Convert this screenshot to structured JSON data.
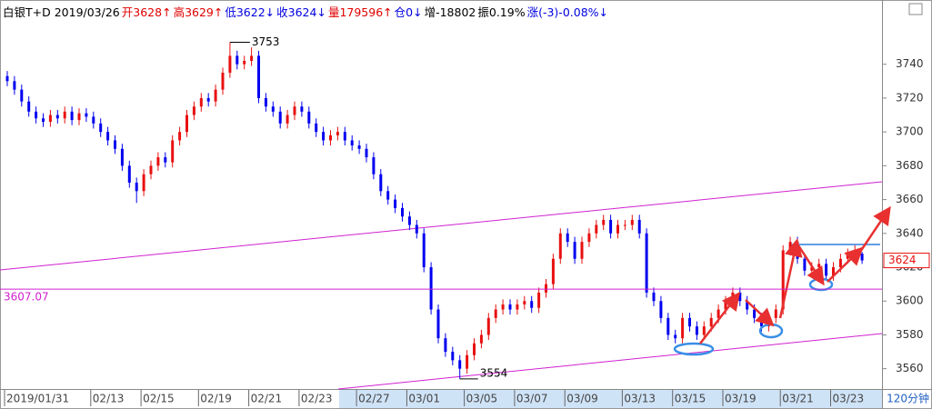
{
  "chart_data": {
    "type": "candlestick",
    "header": [
      {
        "text": "白银T+D 2019/03/26",
        "color": "#000000"
      },
      {
        "text": "开3628↑",
        "color": "#e00000"
      },
      {
        "text": "高3629↑",
        "color": "#e00000"
      },
      {
        "text": "低3622↓",
        "color": "#0000e0"
      },
      {
        "text": "收3624↓",
        "color": "#0000e0"
      },
      {
        "text": "量179596↑",
        "color": "#e00000"
      },
      {
        "text": "仓0↓",
        "color": "#0000e0"
      },
      {
        "text": "增-18802",
        "color": "#000000"
      },
      {
        "text": "振0.19%",
        "color": "#000000"
      },
      {
        "text": "涨(-3)-0.08%↓",
        "color": "#0000e0"
      }
    ],
    "period": "120分钟",
    "up_color": "#e81010",
    "down_color": "#0000f0",
    "ylim": [
      3548,
      3778
    ],
    "yticks": [
      3560,
      3580,
      3600,
      3620,
      3640,
      3660,
      3680,
      3700,
      3720,
      3740
    ],
    "ref_line": 3607.07,
    "ref_color": "#d020d0",
    "categories": [
      "2019/01/31",
      null,
      null,
      null,
      null,
      null,
      null,
      null,
      null,
      null,
      null,
      null,
      "02/13",
      null,
      null,
      null,
      null,
      null,
      null,
      "02/15",
      null,
      null,
      null,
      null,
      null,
      null,
      null,
      "02/19",
      null,
      null,
      null,
      null,
      null,
      null,
      "02/21",
      null,
      null,
      null,
      null,
      null,
      null,
      "02/23",
      null,
      null,
      null,
      null,
      null,
      null,
      null,
      "02/27",
      null,
      null,
      null,
      null,
      null,
      null,
      "03/01",
      null,
      null,
      null,
      null,
      null,
      null,
      null,
      "03/05",
      null,
      null,
      null,
      null,
      null,
      null,
      "03/07",
      null,
      null,
      null,
      null,
      null,
      null,
      "03/09",
      null,
      null,
      null,
      null,
      null,
      null,
      null,
      "03/13",
      null,
      null,
      null,
      null,
      null,
      null,
      "03/15",
      null,
      null,
      null,
      null,
      null,
      null,
      "03/19",
      null,
      null,
      null,
      null,
      null,
      null,
      null,
      "03/21",
      null,
      null,
      null,
      null,
      null,
      null,
      "03/23",
      null,
      null,
      null,
      null
    ],
    "open": [
      3733,
      3730,
      3725,
      3718,
      3712,
      3708,
      3706,
      3710,
      3708,
      3712,
      3707,
      3711,
      3709,
      3705,
      3700,
      3695,
      3690,
      3680,
      3670,
      3665,
      3675,
      3680,
      3685,
      3682,
      3695,
      3700,
      3710,
      3715,
      3720,
      3718,
      3725,
      3735,
      3745,
      3740,
      3742,
      3745,
      3720,
      3715,
      3712,
      3705,
      3710,
      3715,
      3712,
      3705,
      3700,
      3695,
      3698,
      3700,
      3695,
      3692,
      3690,
      3685,
      3675,
      3665,
      3660,
      3655,
      3650,
      3645,
      3640,
      3620,
      3595,
      3578,
      3570,
      3565,
      3560,
      3568,
      3575,
      3580,
      3590,
      3595,
      3598,
      3595,
      3598,
      3600,
      3596,
      3605,
      3610,
      3625,
      3640,
      3635,
      3625,
      3635,
      3640,
      3645,
      3648,
      3640,
      3645,
      3645,
      3648,
      3640,
      3605,
      3600,
      3590,
      3580,
      3578,
      3590,
      3585,
      3580,
      3585,
      3590,
      3595,
      3600,
      3605,
      3600,
      3595,
      3590,
      3585,
      3590,
      3595,
      3630,
      3635,
      3625,
      3618,
      3620,
      3622,
      3615,
      3620,
      3625,
      3628,
      3628
    ],
    "high": [
      3736,
      3733,
      3728,
      3721,
      3715,
      3711,
      3713,
      3713,
      3715,
      3715,
      3714,
      3714,
      3712,
      3708,
      3703,
      3698,
      3693,
      3683,
      3673,
      3678,
      3683,
      3688,
      3688,
      3698,
      3703,
      3713,
      3718,
      3723,
      3723,
      3728,
      3738,
      3753,
      3748,
      3745,
      3750,
      3748,
      3723,
      3718,
      3715,
      3713,
      3718,
      3718,
      3715,
      3708,
      3703,
      3701,
      3703,
      3703,
      3698,
      3695,
      3693,
      3688,
      3678,
      3668,
      3663,
      3658,
      3653,
      3648,
      3643,
      3623,
      3598,
      3581,
      3573,
      3568,
      3571,
      3578,
      3583,
      3593,
      3598,
      3601,
      3601,
      3601,
      3603,
      3603,
      3608,
      3613,
      3628,
      3643,
      3643,
      3638,
      3638,
      3643,
      3648,
      3651,
      3651,
      3648,
      3648,
      3651,
      3651,
      3643,
      3608,
      3603,
      3593,
      3583,
      3593,
      3593,
      3588,
      3588,
      3593,
      3598,
      3603,
      3608,
      3608,
      3603,
      3598,
      3593,
      3593,
      3598,
      3633,
      3638,
      3638,
      3628,
      3623,
      3625,
      3625,
      3623,
      3628,
      3631,
      3633,
      3629
    ],
    "low": [
      3727,
      3722,
      3715,
      3709,
      3705,
      3703,
      3703,
      3705,
      3705,
      3704,
      3704,
      3706,
      3702,
      3697,
      3692,
      3687,
      3677,
      3667,
      3658,
      3662,
      3672,
      3677,
      3679,
      3679,
      3692,
      3697,
      3707,
      3712,
      3715,
      3715,
      3722,
      3732,
      3737,
      3737,
      3739,
      3717,
      3712,
      3709,
      3702,
      3702,
      3707,
      3709,
      3702,
      3697,
      3692,
      3692,
      3695,
      3692,
      3689,
      3687,
      3682,
      3672,
      3662,
      3657,
      3652,
      3647,
      3642,
      3637,
      3617,
      3592,
      3575,
      3567,
      3562,
      3554,
      3557,
      3565,
      3572,
      3577,
      3587,
      3592,
      3592,
      3592,
      3595,
      3593,
      3593,
      3602,
      3607,
      3622,
      3632,
      3622,
      3622,
      3632,
      3637,
      3642,
      3637,
      3637,
      3642,
      3642,
      3637,
      3602,
      3597,
      3587,
      3577,
      3575,
      3575,
      3582,
      3577,
      3577,
      3582,
      3587,
      3592,
      3597,
      3597,
      3592,
      3587,
      3582,
      3582,
      3587,
      3592,
      3627,
      3622,
      3615,
      3615,
      3617,
      3612,
      3612,
      3617,
      3622,
      3625,
      3622
    ],
    "close": [
      3730,
      3725,
      3718,
      3712,
      3708,
      3706,
      3710,
      3708,
      3712,
      3707,
      3711,
      3709,
      3705,
      3700,
      3695,
      3690,
      3680,
      3670,
      3665,
      3675,
      3680,
      3685,
      3682,
      3695,
      3700,
      3710,
      3715,
      3720,
      3718,
      3725,
      3735,
      3745,
      3740,
      3742,
      3745,
      3720,
      3715,
      3712,
      3705,
      3710,
      3715,
      3712,
      3705,
      3700,
      3695,
      3698,
      3700,
      3695,
      3692,
      3690,
      3685,
      3675,
      3665,
      3660,
      3655,
      3650,
      3645,
      3640,
      3620,
      3595,
      3578,
      3570,
      3565,
      3560,
      3568,
      3575,
      3580,
      3590,
      3595,
      3598,
      3595,
      3598,
      3600,
      3596,
      3605,
      3610,
      3625,
      3640,
      3635,
      3625,
      3635,
      3640,
      3645,
      3648,
      3640,
      3645,
      3645,
      3648,
      3640,
      3605,
      3600,
      3590,
      3580,
      3578,
      3590,
      3585,
      3580,
      3585,
      3590,
      3595,
      3600,
      3605,
      3600,
      3595,
      3590,
      3585,
      3590,
      3595,
      3630,
      3635,
      3625,
      3618,
      3620,
      3622,
      3615,
      3620,
      3625,
      3628,
      3630,
      3624
    ]
  }
}
